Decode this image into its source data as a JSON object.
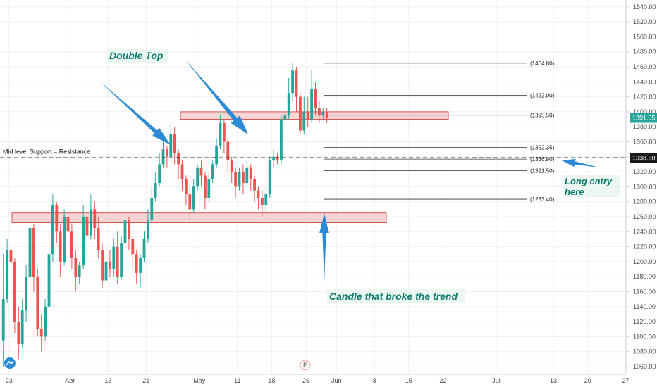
{
  "chart_data": {
    "type": "candlestick",
    "ylim": [
      1050,
      1550
    ],
    "ticks": {
      "y": [
        1060,
        1080,
        1100,
        1120,
        1140,
        1160,
        1180,
        1200,
        1220,
        1240,
        1260,
        1280,
        1300,
        1320,
        1340,
        1360,
        1380,
        1400,
        1420,
        1440,
        1460,
        1480,
        1500,
        1520,
        1540
      ],
      "y_labels": [
        "1060.00",
        "1080.00",
        "1100.00",
        "1120.00",
        "1140.00",
        "1160.00",
        "1180.00",
        "1200.00",
        "1220.00",
        "1240.00",
        "1260.00",
        "1280.00",
        "1300.00",
        "1320.00",
        "1340.00",
        "1360.00",
        "1380.00",
        "1400.00",
        "1420.00",
        "1440.00",
        "1460.00",
        "1480.00",
        "1500.00",
        "1520.00",
        "1540.00"
      ],
      "x_labels": [
        {
          "label": "23",
          "bar": 2
        },
        {
          "label": "Apr",
          "bar": 18
        },
        {
          "label": "13",
          "bar": 28
        },
        {
          "label": "21",
          "bar": 38
        },
        {
          "label": "May",
          "bar": 52
        },
        {
          "label": "11",
          "bar": 62
        },
        {
          "label": "18",
          "bar": 71
        },
        {
          "label": "26",
          "bar": 80
        },
        {
          "label": "Jun",
          "bar": 88
        },
        {
          "label": "8",
          "bar": 98
        },
        {
          "label": "15",
          "bar": 107
        },
        {
          "label": "22",
          "bar": 116
        },
        {
          "label": "Jul",
          "bar": 130
        },
        {
          "label": "13",
          "bar": 145
        },
        {
          "label": "20",
          "bar": 154
        },
        {
          "label": "27",
          "bar": 164
        }
      ]
    },
    "candles": [
      [
        1095,
        1150,
        1060,
        1210
      ],
      [
        1150,
        1215,
        1145,
        1230
      ],
      [
        1215,
        1200,
        1180,
        1235
      ],
      [
        1200,
        1120,
        1105,
        1205
      ],
      [
        1120,
        1090,
        1070,
        1140
      ],
      [
        1090,
        1135,
        1085,
        1150
      ],
      [
        1135,
        1180,
        1120,
        1195
      ],
      [
        1180,
        1245,
        1170,
        1255
      ],
      [
        1245,
        1180,
        1160,
        1250
      ],
      [
        1180,
        1110,
        1100,
        1190
      ],
      [
        1110,
        1100,
        1080,
        1130
      ],
      [
        1100,
        1140,
        1095,
        1150
      ],
      [
        1140,
        1210,
        1135,
        1225
      ],
      [
        1210,
        1275,
        1200,
        1290
      ],
      [
        1275,
        1240,
        1225,
        1280
      ],
      [
        1240,
        1200,
        1180,
        1250
      ],
      [
        1200,
        1260,
        1195,
        1270
      ],
      [
        1260,
        1240,
        1210,
        1280
      ],
      [
        1240,
        1205,
        1190,
        1250
      ],
      [
        1205,
        1180,
        1160,
        1215
      ],
      [
        1180,
        1195,
        1170,
        1200
      ],
      [
        1195,
        1260,
        1190,
        1275
      ],
      [
        1260,
        1235,
        1215,
        1270
      ],
      [
        1235,
        1270,
        1230,
        1290
      ],
      [
        1270,
        1245,
        1230,
        1280
      ],
      [
        1245,
        1215,
        1205,
        1260
      ],
      [
        1215,
        1175,
        1165,
        1225
      ],
      [
        1175,
        1200,
        1165,
        1210
      ],
      [
        1200,
        1190,
        1180,
        1215
      ],
      [
        1190,
        1220,
        1180,
        1230
      ],
      [
        1220,
        1180,
        1170,
        1240
      ],
      [
        1180,
        1225,
        1175,
        1235
      ],
      [
        1225,
        1255,
        1220,
        1265
      ],
      [
        1255,
        1230,
        1215,
        1260
      ],
      [
        1230,
        1210,
        1190,
        1235
      ],
      [
        1210,
        1185,
        1170,
        1215
      ],
      [
        1185,
        1205,
        1165,
        1210
      ],
      [
        1205,
        1230,
        1200,
        1240
      ],
      [
        1230,
        1255,
        1225,
        1270
      ],
      [
        1255,
        1285,
        1250,
        1300
      ],
      [
        1285,
        1305,
        1280,
        1320
      ],
      [
        1305,
        1330,
        1300,
        1345
      ],
      [
        1330,
        1350,
        1325,
        1360
      ],
      [
        1350,
        1340,
        1325,
        1355
      ],
      [
        1340,
        1370,
        1335,
        1385
      ],
      [
        1370,
        1345,
        1330,
        1380
      ],
      [
        1345,
        1330,
        1310,
        1350
      ],
      [
        1330,
        1310,
        1295,
        1335
      ],
      [
        1310,
        1290,
        1275,
        1315
      ],
      [
        1290,
        1270,
        1255,
        1300
      ],
      [
        1270,
        1300,
        1265,
        1310
      ],
      [
        1300,
        1325,
        1295,
        1330
      ],
      [
        1325,
        1315,
        1300,
        1335
      ],
      [
        1315,
        1285,
        1270,
        1320
      ],
      [
        1285,
        1310,
        1280,
        1320
      ],
      [
        1310,
        1330,
        1305,
        1335
      ],
      [
        1330,
        1355,
        1325,
        1365
      ],
      [
        1355,
        1385,
        1350,
        1395
      ],
      [
        1385,
        1360,
        1345,
        1390
      ],
      [
        1360,
        1335,
        1320,
        1365
      ],
      [
        1335,
        1320,
        1305,
        1340
      ],
      [
        1320,
        1300,
        1285,
        1325
      ],
      [
        1300,
        1320,
        1295,
        1325
      ],
      [
        1320,
        1305,
        1290,
        1330
      ],
      [
        1305,
        1325,
        1300,
        1335
      ],
      [
        1325,
        1310,
        1295,
        1330
      ],
      [
        1310,
        1295,
        1280,
        1315
      ],
      [
        1295,
        1285,
        1270,
        1300
      ],
      [
        1285,
        1275,
        1260,
        1295
      ],
      [
        1275,
        1290,
        1265,
        1300
      ],
      [
        1290,
        1335,
        1285,
        1340
      ],
      [
        1335,
        1340,
        1325,
        1350
      ],
      [
        1340,
        1335,
        1330,
        1345
      ],
      [
        1335,
        1390,
        1330,
        1395
      ],
      [
        1390,
        1395,
        1385,
        1400
      ],
      [
        1395,
        1425,
        1390,
        1445
      ],
      [
        1425,
        1455,
        1415,
        1465
      ],
      [
        1455,
        1420,
        1400,
        1460
      ],
      [
        1420,
        1375,
        1370,
        1425
      ],
      [
        1375,
        1400,
        1370,
        1420
      ],
      [
        1400,
        1390,
        1380,
        1420
      ],
      [
        1390,
        1430,
        1385,
        1455
      ],
      [
        1430,
        1405,
        1395,
        1440
      ],
      [
        1405,
        1395,
        1385,
        1415
      ],
      [
        1395,
        1400,
        1390,
        1405
      ],
      [
        1400,
        1392,
        1385,
        1405
      ]
    ],
    "fib_levels": [
      {
        "value": 1464.8,
        "label": "(1464.80)"
      },
      {
        "value": 1422.0,
        "label": "(1422.00)"
      },
      {
        "value": 1395.5,
        "label": "(1395.50)"
      },
      {
        "value": 1352.35,
        "label": "(1352.35)"
      },
      {
        "value": 1336.9,
        "label": "(1336.90)"
      },
      {
        "value": 1321.5,
        "label": "(1321.50)"
      },
      {
        "value": 1283.4,
        "label": "(1283.40)"
      }
    ],
    "zones": [
      {
        "from": 1390,
        "to": 1400
      },
      {
        "from": 1252,
        "to": 1265
      }
    ],
    "support_line": {
      "value": 1338.6,
      "label": "Mid level Support = Resistance",
      "tag": "1338.60"
    },
    "last_price": {
      "value": 1391.95,
      "tag": "1391.95"
    },
    "callouts": [
      {
        "id": "double-top",
        "text": "Double Top"
      },
      {
        "id": "long-entry",
        "lines": [
          "Long entry",
          "here"
        ]
      },
      {
        "id": "trend-break",
        "text": "Candle that broke the trend"
      }
    ],
    "colors": {
      "up": "#26a69a",
      "down": "#ef5350",
      "zone_fill": "#f4c7c7",
      "zone_stroke": "#d9534f",
      "arrow": "#2a8ad6",
      "callout_text": "#0f7d6e",
      "price_line": "#26a69a"
    },
    "event_marker": "E",
    "logo": "tradingview"
  }
}
